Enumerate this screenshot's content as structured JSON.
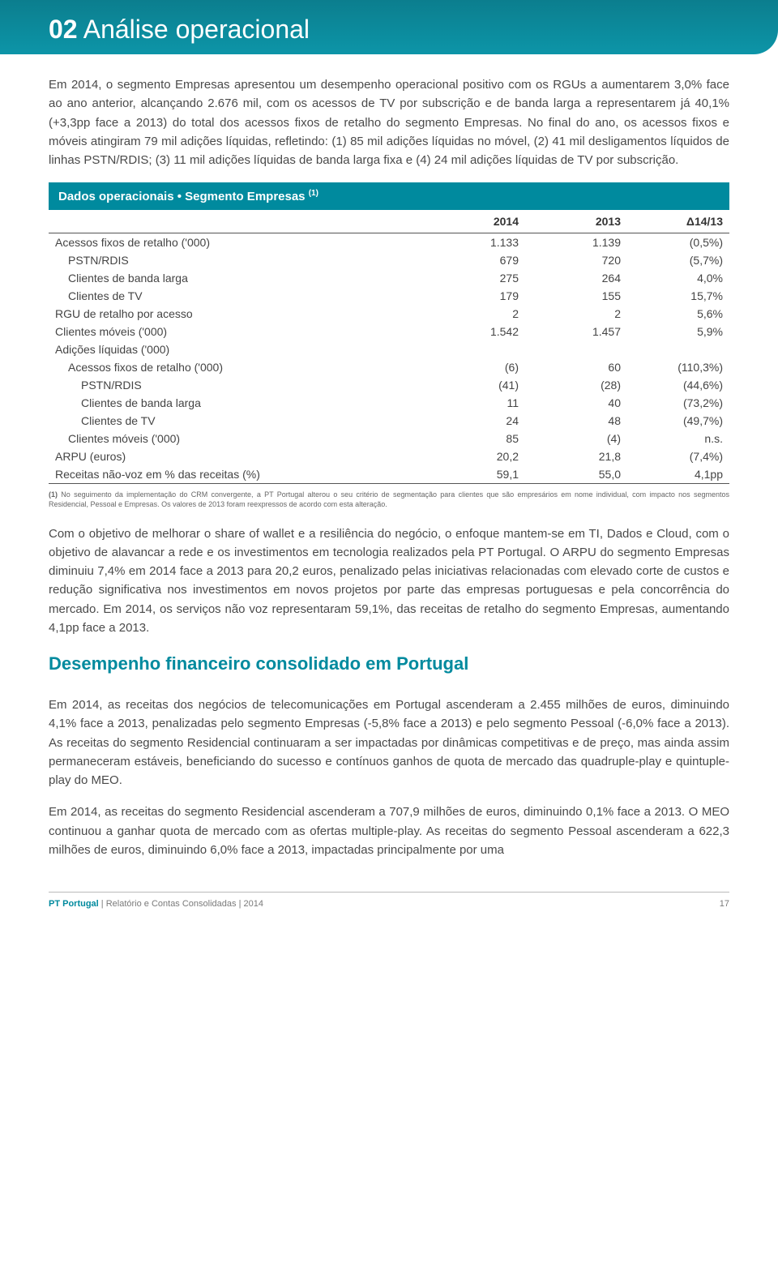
{
  "header": {
    "number": "02",
    "title": "Análise operacional"
  },
  "paragraphs": {
    "intro": "Em 2014, o segmento Empresas apresentou um desempenho operacional positivo com os RGUs a aumentarem 3,0% face ao ano anterior, alcançando 2.676 mil, com os acessos de TV por subscrição e de banda larga a representarem já 40,1% (+3,3pp face a 2013) do total dos acessos fixos de retalho do segmento Empresas. No final do ano, os acessos fixos e móveis atingiram 79 mil adições líquidas, refletindo: (1) 85 mil adições líquidas no móvel, (2) 41 mil desligamentos líquidos de linhas PSTN/RDIS; (3) 11 mil adições líquidas de banda larga fixa e (4) 24 mil adições líquidas de TV por subscrição.",
    "after_table": "Com o objetivo de melhorar o share of wallet e a resiliência do negócio, o enfoque mantem-se em TI, Dados e Cloud, com o objetivo de alavancar a rede e os investimentos em tecnologia realizados pela PT Portugal. O ARPU do segmento Empresas diminuiu 7,4% em 2014 face a 2013 para 20,2 euros, penalizado pelas iniciativas relacionadas com elevado corte de custos e redução significativa nos investimentos em novos projetos por parte das empresas portuguesas e pela concorrência do mercado. Em 2014, os serviços não voz representaram 59,1%, das receitas de retalho do segmento Empresas, aumentando 4,1pp face a 2013.",
    "fin_p1": "Em 2014, as receitas dos negócios de telecomunicações em Portugal ascenderam a 2.455 milhões de euros, diminuindo 4,1% face a 2013, penalizadas pelo segmento Empresas (-5,8% face a 2013) e pelo segmento Pessoal (-6,0% face a 2013). As receitas do segmento Residencial continuaram a ser impactadas por dinâmicas competitivas e de preço, mas ainda assim permaneceram estáveis, beneficiando do sucesso e contínuos ganhos de quota de mercado das quadruple-play e quintuple-play do MEO.",
    "fin_p2": "Em 2014, as receitas do segmento Residencial ascenderam a 707,9 milhões de euros, diminuindo 0,1% face a 2013. O MEO continuou a ganhar quota de mercado com as ofertas multiple-play. As receitas do segmento Pessoal ascenderam a 622,3 milhões de euros, diminuindo 6,0% face a 2013, impactadas principalmente por uma"
  },
  "table": {
    "title": "Dados operacionais • Segmento Empresas",
    "title_sup": "(1)",
    "columns": [
      "",
      "2014",
      "2013",
      "Δ14/13"
    ],
    "rows": [
      {
        "indent": 0,
        "label": "Acessos fixos de retalho ('000)",
        "c1": "1.133",
        "c2": "1.139",
        "c3": "(0,5%)"
      },
      {
        "indent": 1,
        "label": "PSTN/RDIS",
        "c1": "679",
        "c2": "720",
        "c3": "(5,7%)"
      },
      {
        "indent": 1,
        "label": "Clientes de banda larga",
        "c1": "275",
        "c2": "264",
        "c3": "4,0%"
      },
      {
        "indent": 1,
        "label": "Clientes de TV",
        "c1": "179",
        "c2": "155",
        "c3": "15,7%"
      },
      {
        "indent": 0,
        "label": "RGU de retalho por acesso",
        "c1": "2",
        "c2": "2",
        "c3": "5,6%"
      },
      {
        "indent": 0,
        "label": "Clientes móveis ('000)",
        "c1": "1.542",
        "c2": "1.457",
        "c3": "5,9%"
      },
      {
        "indent": 0,
        "label": "Adições líquidas ('000)",
        "c1": "",
        "c2": "",
        "c3": ""
      },
      {
        "indent": 1,
        "label": "Acessos fixos de retalho ('000)",
        "c1": "(6)",
        "c2": "60",
        "c3": "(110,3%)"
      },
      {
        "indent": 2,
        "label": "PSTN/RDIS",
        "c1": "(41)",
        "c2": "(28)",
        "c3": "(44,6%)"
      },
      {
        "indent": 2,
        "label": "Clientes de banda larga",
        "c1": "11",
        "c2": "40",
        "c3": "(73,2%)"
      },
      {
        "indent": 2,
        "label": "Clientes de TV",
        "c1": "24",
        "c2": "48",
        "c3": "(49,7%)"
      },
      {
        "indent": 1,
        "label": "Clientes móveis ('000)",
        "c1": "85",
        "c2": "(4)",
        "c3": "n.s."
      },
      {
        "indent": 0,
        "label": "ARPU (euros)",
        "c1": "20,2",
        "c2": "21,8",
        "c3": "(7,4%)"
      },
      {
        "indent": 0,
        "label": "Receitas não-voz em % das receitas (%)",
        "c1": "59,1",
        "c2": "55,0",
        "c3": "4,1pp"
      }
    ],
    "footnote_label": "(1)",
    "footnote": "No seguimento da implementação do CRM convergente, a PT Portugal alterou o seu critério de segmentação para clientes que são empresários em nome individual, com impacto nos segmentos Residencial, Pessoal e Empresas. Os valores de 2013 foram reexpressos de acordo com esta alteração."
  },
  "section_heading": "Desempenho financeiro consolidado em Portugal",
  "footer": {
    "brand": "PT Portugal",
    "text": " | Relatório e Contas Consolidadas | 2014",
    "page": "17"
  },
  "colors": {
    "accent": "#008a9e",
    "text": "#4a4a4a"
  }
}
